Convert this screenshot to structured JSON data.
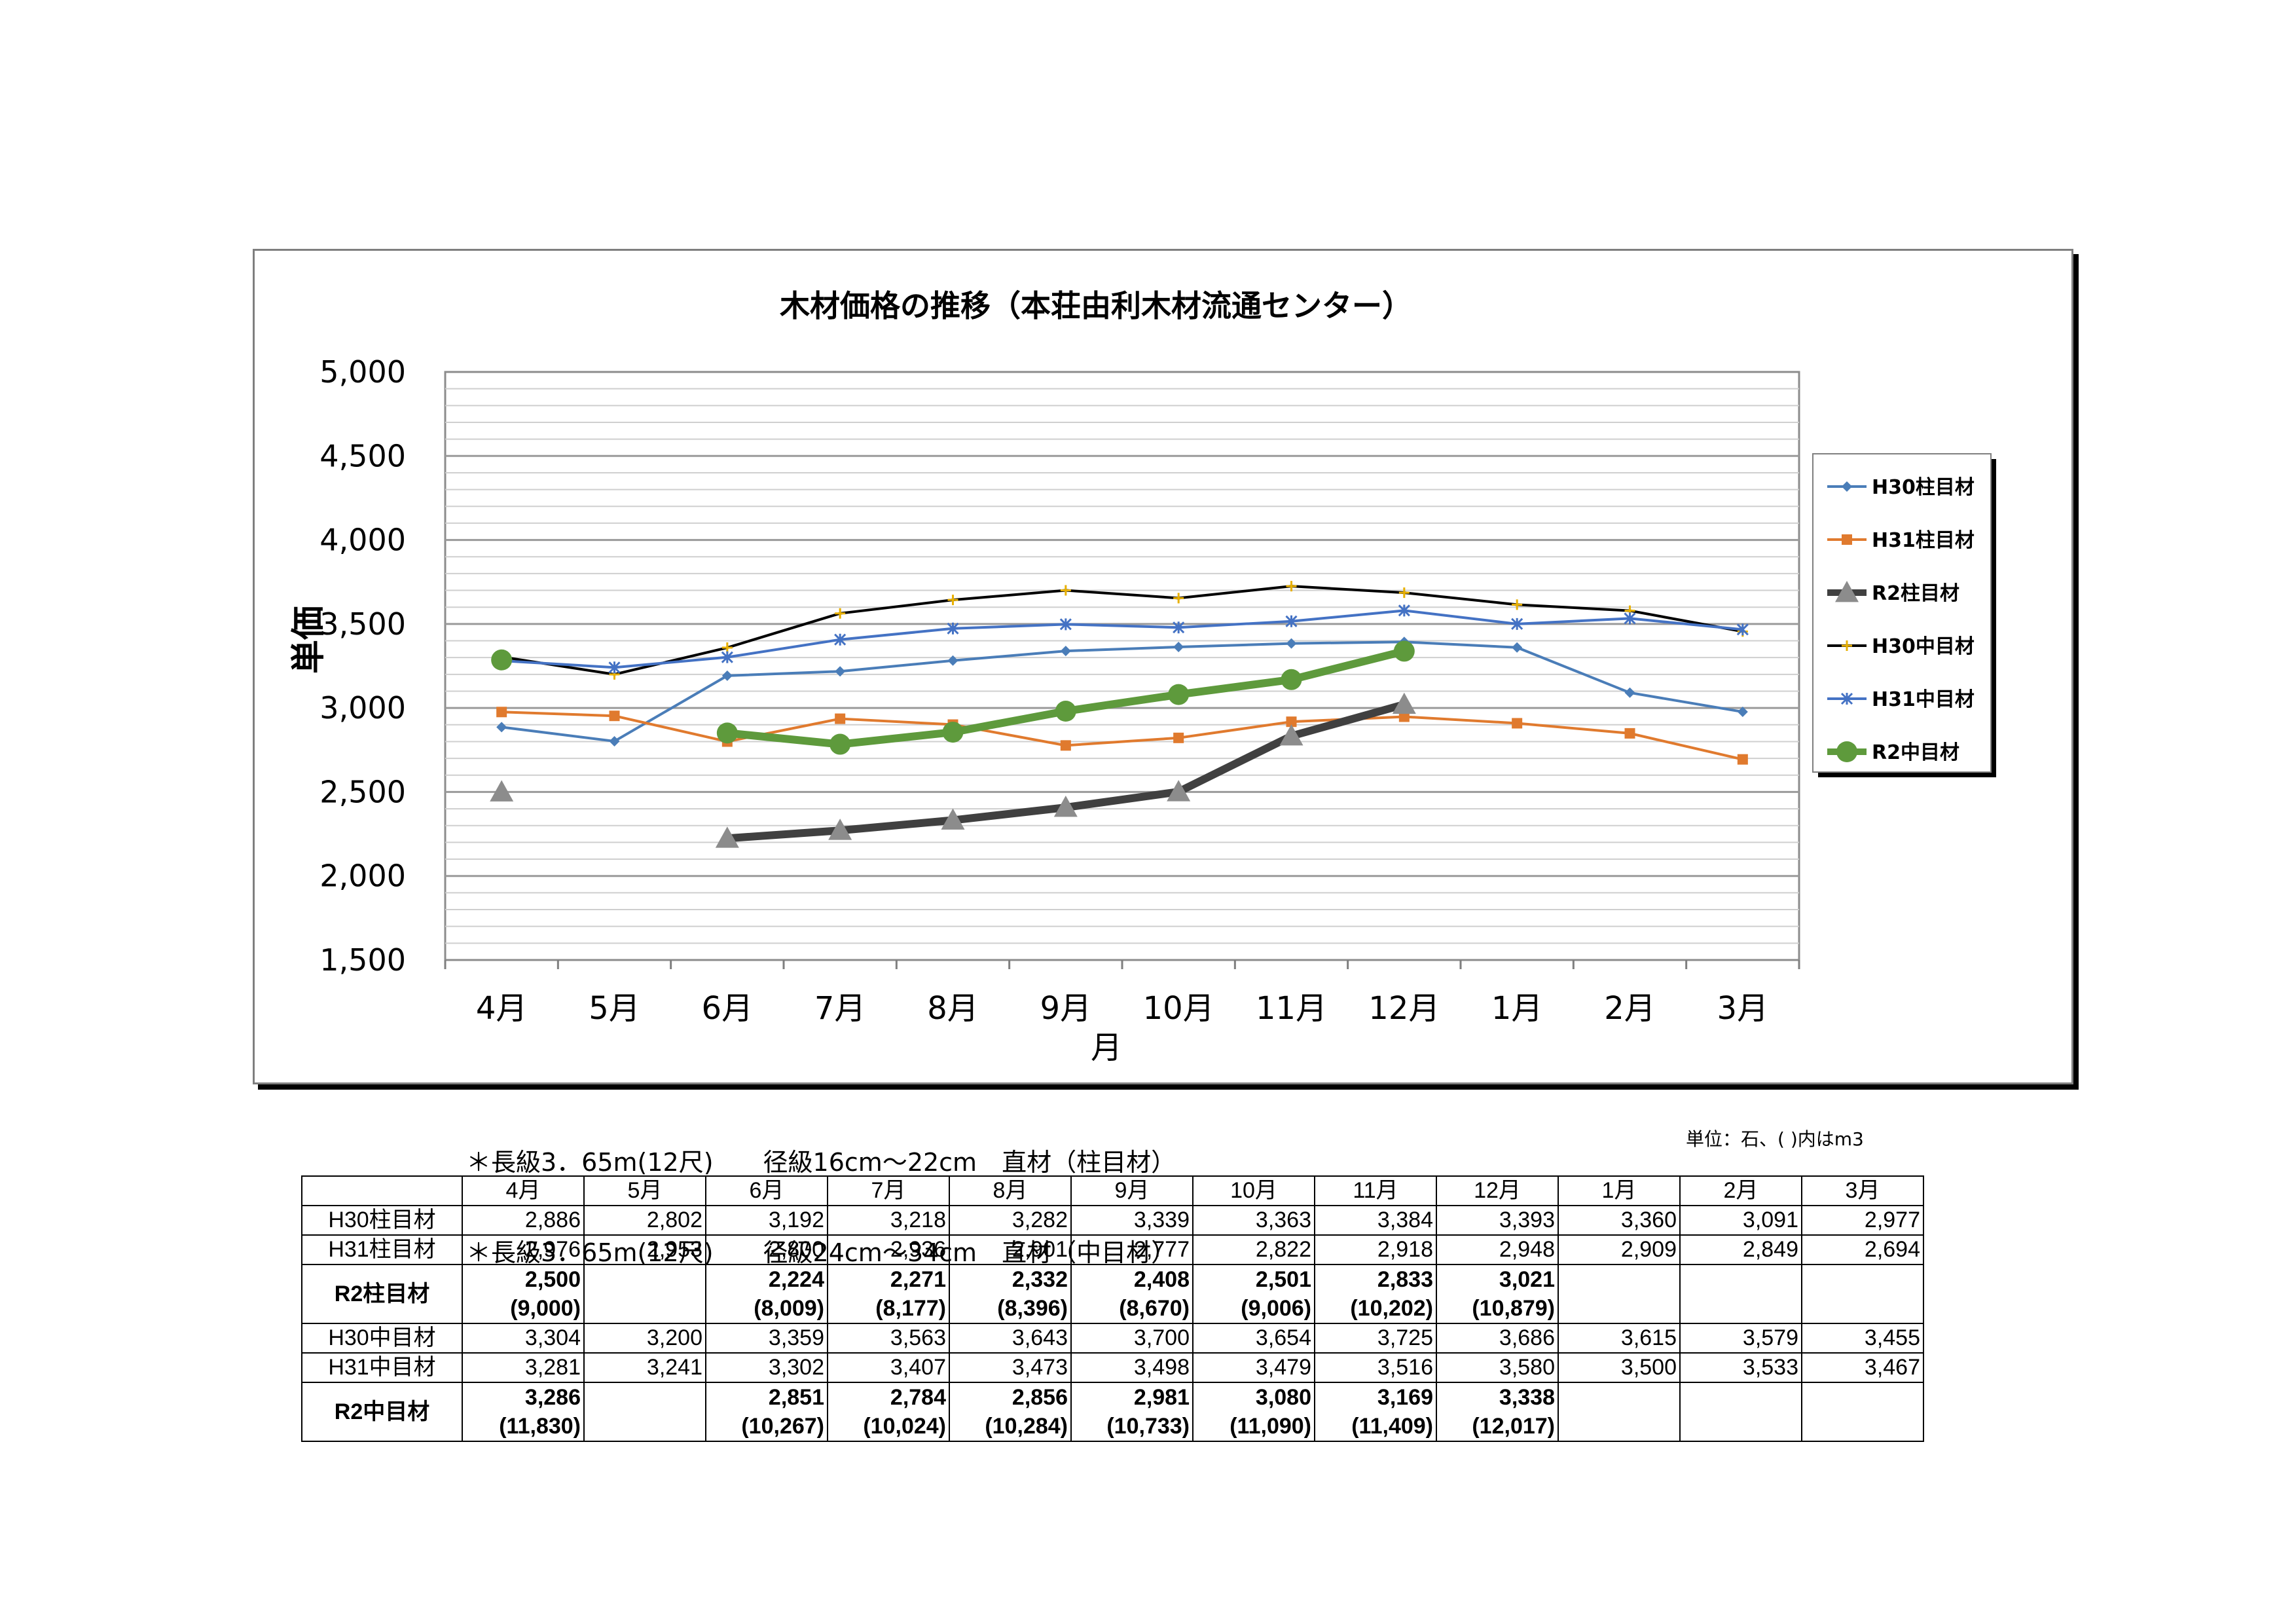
{
  "chart_data": {
    "type": "line",
    "title": "木材価格の推移（本荘由利木材流通センター）",
    "xlabel": "月",
    "ylabel": "単価",
    "categories": [
      "4月",
      "5月",
      "6月",
      "7月",
      "8月",
      "9月",
      "10月",
      "11月",
      "12月",
      "1月",
      "2月",
      "3月"
    ],
    "ylim": [
      1500,
      5000
    ],
    "yticks": [
      "1,500",
      "2,000",
      "2,500",
      "3,000",
      "3,500",
      "4,000",
      "4,500",
      "5,000"
    ],
    "ytick_values": [
      1500,
      2000,
      2500,
      3000,
      3500,
      4000,
      4500,
      5000
    ],
    "grid": "horizontal minor gridlines every 100",
    "legend_position": "right",
    "series": [
      {
        "name": "H30柱目材",
        "color": "#4a7db8",
        "marker": "diamond",
        "thick": false,
        "values": [
          2886,
          2802,
          3192,
          3218,
          3282,
          3339,
          3363,
          3384,
          3393,
          3360,
          3091,
          2977
        ]
      },
      {
        "name": "H31柱目材",
        "color": "#e07a2e",
        "marker": "square",
        "thick": false,
        "values": [
          2976,
          2953,
          2800,
          2936,
          2901,
          2777,
          2822,
          2918,
          2948,
          2909,
          2849,
          2694
        ]
      },
      {
        "name": "R2柱目材",
        "color": "#404040",
        "marker": "triangle",
        "thick": true,
        "values": [
          2500,
          null,
          2224,
          2271,
          2332,
          2408,
          2501,
          2833,
          3021,
          null,
          null,
          null
        ]
      },
      {
        "name": "H30中目材",
        "color": "#000000",
        "marker": "plus",
        "thick": false,
        "values": [
          3304,
          3200,
          3359,
          3563,
          3643,
          3700,
          3654,
          3725,
          3686,
          3615,
          3579,
          3455
        ]
      },
      {
        "name": "H31中目材",
        "color": "#4472c4",
        "marker": "star",
        "thick": false,
        "values": [
          3281,
          3241,
          3302,
          3407,
          3473,
          3498,
          3479,
          3516,
          3580,
          3500,
          3533,
          3467
        ]
      },
      {
        "name": "R2中目材",
        "color": "#5e9a3c",
        "marker": "circle",
        "thick": true,
        "values": [
          3286,
          null,
          2851,
          2784,
          2856,
          2981,
          3080,
          3169,
          3338,
          null,
          null,
          null
        ]
      }
    ]
  },
  "notes": [
    "＊長級3．65m(12尺)　　径級16cm～22cm　直材（柱目材）",
    "＊長級3．65m(12尺)　　径級24cm～34cm　直材（中目材）"
  ],
  "unit_note": "単位：石、(  )内はm3",
  "table": {
    "columns": [
      "4月",
      "5月",
      "6月",
      "7月",
      "8月",
      "9月",
      "10月",
      "11月",
      "12月",
      "1月",
      "2月",
      "3月"
    ],
    "rows": [
      {
        "label": "H30柱目材",
        "bold": false,
        "cells": [
          "2,886",
          "2,802",
          "3,192",
          "3,218",
          "3,282",
          "3,339",
          "3,363",
          "3,384",
          "3,393",
          "3,360",
          "3,091",
          "2,977"
        ],
        "sub": null
      },
      {
        "label": "H31柱目材",
        "bold": false,
        "cells": [
          "2,976",
          "2,953",
          "2,800",
          "2,936",
          "2,901",
          "2,777",
          "2,822",
          "2,918",
          "2,948",
          "2,909",
          "2,849",
          "2,694"
        ],
        "sub": null
      },
      {
        "label": "R2柱目材",
        "bold": true,
        "cells": [
          "2,500",
          "",
          "2,224",
          "2,271",
          "2,332",
          "2,408",
          "2,501",
          "2,833",
          "3,021",
          "",
          "",
          ""
        ],
        "sub": [
          "(9,000)",
          "",
          "(8,009)",
          "(8,177)",
          "(8,396)",
          "(8,670)",
          "(9,006)",
          "(10,202)",
          "(10,879)",
          "",
          "",
          ""
        ]
      },
      {
        "label": "H30中目材",
        "bold": false,
        "cells": [
          "3,304",
          "3,200",
          "3,359",
          "3,563",
          "3,643",
          "3,700",
          "3,654",
          "3,725",
          "3,686",
          "3,615",
          "3,579",
          "3,455"
        ],
        "sub": null
      },
      {
        "label": "H31中目材",
        "bold": false,
        "cells": [
          "3,281",
          "3,241",
          "3,302",
          "3,407",
          "3,473",
          "3,498",
          "3,479",
          "3,516",
          "3,580",
          "3,500",
          "3,533",
          "3,467"
        ],
        "sub": null
      },
      {
        "label": "R2中目材",
        "bold": true,
        "cells": [
          "3,286",
          "",
          "2,851",
          "2,784",
          "2,856",
          "2,981",
          "3,080",
          "3,169",
          "3,338",
          "",
          "",
          ""
        ],
        "sub": [
          "(11,830)",
          "",
          "(10,267)",
          "(10,024)",
          "(10,284)",
          "(10,733)",
          "(11,090)",
          "(11,409)",
          "(12,017)",
          "",
          "",
          ""
        ]
      }
    ]
  }
}
